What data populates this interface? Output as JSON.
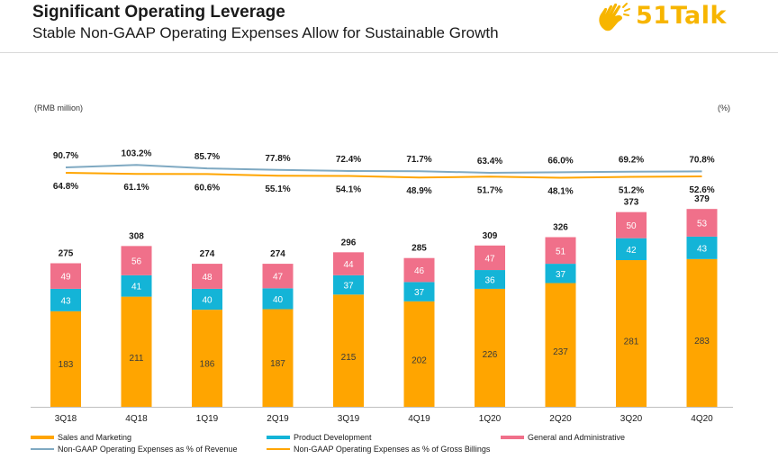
{
  "header": {
    "title": "Significant Operating Leverage",
    "subtitle": "Stable Non-GAAP Operating Expenses Allow for Sustainable Growth",
    "logo_text": "51Talk"
  },
  "colors": {
    "sales": "#FFA500",
    "product": "#14B4D7",
    "ga": "#F0708A",
    "revenue_line": "#7FA9C2",
    "billings_line": "#FFA500",
    "logo": "#F7B500"
  },
  "chart_data": {
    "type": "bar",
    "stacked": true,
    "unit_left": "(RMB million)",
    "unit_right": "(%)",
    "categories": [
      "3Q18",
      "4Q18",
      "1Q19",
      "2Q19",
      "3Q19",
      "4Q19",
      "1Q20",
      "2Q20",
      "3Q20",
      "4Q20"
    ],
    "series": [
      {
        "name": "Sales and Marketing",
        "values": [
          183,
          211,
          186,
          187,
          215,
          202,
          226,
          237,
          281,
          283
        ]
      },
      {
        "name": "Product Development",
        "values": [
          43,
          41,
          40,
          40,
          37,
          37,
          36,
          37,
          42,
          43
        ]
      },
      {
        "name": "General and Administrative",
        "values": [
          49,
          56,
          48,
          47,
          44,
          46,
          47,
          51,
          50,
          53
        ]
      }
    ],
    "totals": [
      275,
      308,
      274,
      274,
      296,
      285,
      309,
      326,
      373,
      379
    ],
    "line_series": [
      {
        "name": "Non-GAAP Operating Expenses as % of Revenue",
        "values": [
          90.7,
          103.2,
          85.7,
          77.8,
          72.4,
          71.7,
          63.4,
          66.0,
          69.2,
          70.8
        ],
        "labels": [
          "90.7%",
          "103.2%",
          "85.7%",
          "77.8%",
          "72.4%",
          "71.7%",
          "63.4%",
          "66.0%",
          "69.2%",
          "70.8%"
        ]
      },
      {
        "name": "Non-GAAP Operating Expenses as % of Gross Billings",
        "values": [
          64.8,
          61.1,
          60.6,
          55.1,
          54.1,
          48.9,
          51.7,
          48.1,
          51.2,
          52.6
        ],
        "labels": [
          "64.8%",
          "61.1%",
          "60.6%",
          "55.1%",
          "54.1%",
          "48.9%",
          "51.7%",
          "48.1%",
          "51.2%",
          "52.6%"
        ]
      }
    ],
    "legend_position": "bottom"
  }
}
